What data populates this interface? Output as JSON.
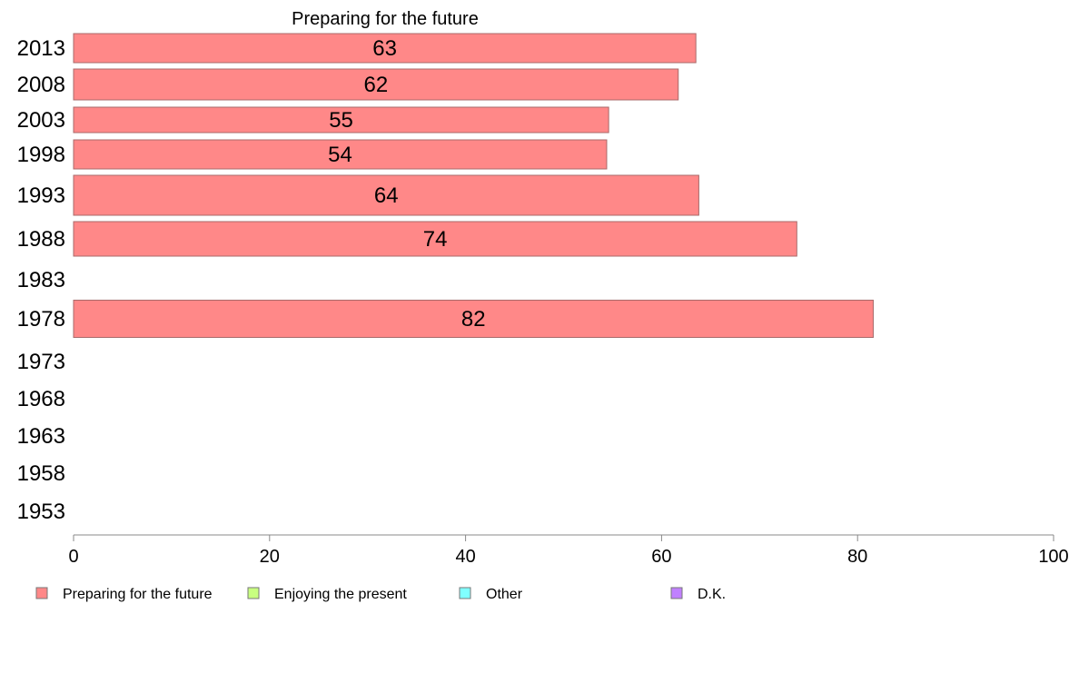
{
  "chart_data": {
    "type": "bar",
    "orientation": "horizontal",
    "title": "Preparing for the future",
    "xlabel": "",
    "ylabel": "",
    "xlim": [
      0,
      100
    ],
    "x_ticks": [
      0,
      20,
      40,
      60,
      80,
      100
    ],
    "categories": [
      "2013",
      "2008",
      "2003",
      "1998",
      "1993",
      "1988",
      "1983",
      "1978",
      "1973",
      "1968",
      "1963",
      "1958",
      "1953"
    ],
    "series": [
      {
        "name": "Preparing for the future",
        "color": "#ff8888",
        "values": [
          63.5,
          61.7,
          54.6,
          54.4,
          63.8,
          73.8,
          null,
          81.6,
          null,
          null,
          null,
          null,
          null
        ],
        "labels": [
          "63",
          "62",
          "55",
          "54",
          "64",
          "74",
          "",
          "82",
          "",
          "",
          "",
          "",
          ""
        ]
      }
    ],
    "legend": {
      "position": "bottom",
      "entries": [
        {
          "label": "Preparing for the future",
          "color": "#ff8888"
        },
        {
          "label": "Enjoying the present",
          "color": "#c8ff80"
        },
        {
          "label": "Other",
          "color": "#80ffff"
        },
        {
          "label": "D.K.",
          "color": "#c080ff"
        }
      ]
    },
    "grid": false
  }
}
